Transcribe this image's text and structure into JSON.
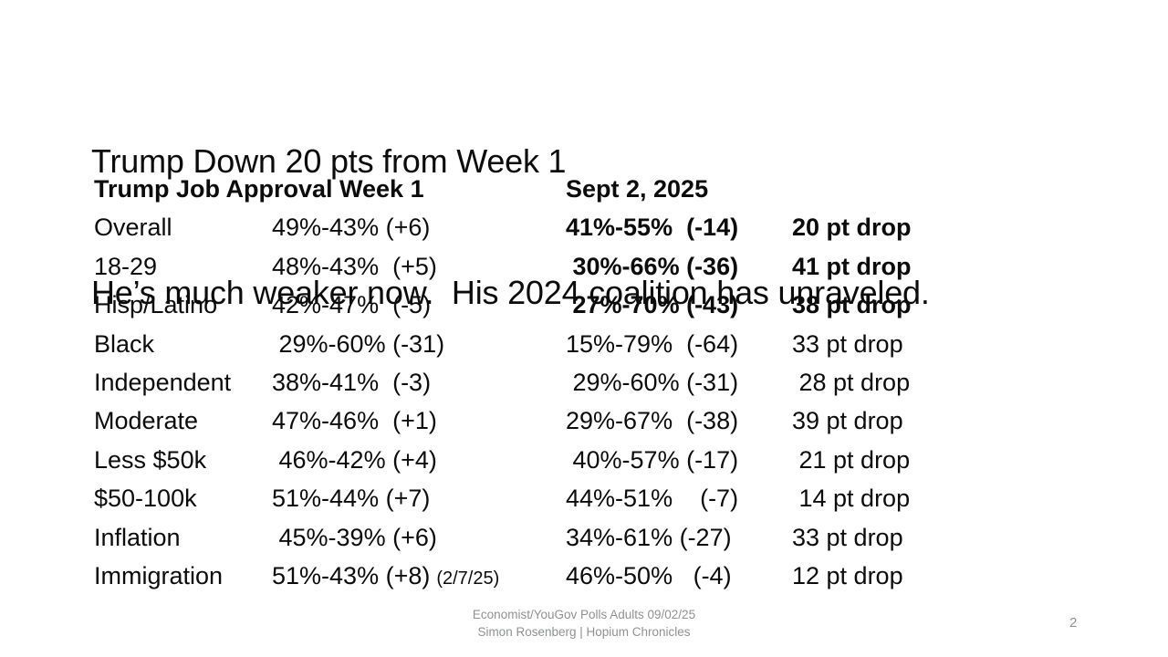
{
  "slide": {
    "title": {
      "line1": "Trump Down 20 pts from Week 1",
      "line2": "He’s much weaker now.  His 2024 coalition has unraveled."
    },
    "footer": {
      "line1": "Economist/YouGov Polls Adults 09/02/25",
      "line2": "Simon Rosenberg | Hopium Chronicles"
    },
    "page_number": "2"
  },
  "table": {
    "header_left": "Trump Job Approval Week 1",
    "header_right": "Sept 2, 2025",
    "rows": [
      {
        "label": "Overall",
        "week1": "49%-43% (+6)",
        "note": "",
        "sept": "41%-55%  (-14)",
        "drop": "20 pt drop",
        "bold": true
      },
      {
        "label": "18-29",
        "week1": "48%-43%  (+5)",
        "note": "",
        "sept": " 30%-66% (-36)",
        "drop": "41 pt drop",
        "bold": true
      },
      {
        "label": "Hisp/Latino",
        "week1": "42%-47%  (-5)",
        "note": "",
        "sept": " 27%-70% (-43)",
        "drop": "38 pt drop",
        "bold": true
      },
      {
        "label": "Black",
        "week1": " 29%-60% (-31)",
        "note": "",
        "sept": "15%-79%  (-64)",
        "drop": "33 pt drop",
        "bold": false
      },
      {
        "label": "Independent",
        "week1": "38%-41%  (-3)",
        "note": "",
        "sept": " 29%-60% (-31)",
        "drop": " 28 pt drop",
        "bold": false
      },
      {
        "label": "Moderate",
        "week1": "47%-46%  (+1)",
        "note": "",
        "sept": "29%-67%  (-38)",
        "drop": "39 pt drop",
        "bold": false
      },
      {
        "label": "Less $50k",
        "week1": " 46%-42% (+4)",
        "note": "",
        "sept": " 40%-57% (-17)",
        "drop": " 21 pt drop",
        "bold": false
      },
      {
        "label": "$50-100k",
        "week1": "51%-44% (+7)",
        "note": "",
        "sept": "44%-51%    (-7)",
        "drop": " 14 pt drop",
        "bold": false
      },
      {
        "label": "Inflation",
        "week1": " 45%-39% (+6)",
        "note": "",
        "sept": "34%-61% (-27)",
        "drop": "33 pt drop",
        "bold": false
      },
      {
        "label": "Immigration",
        "week1": "51%-43% (+8)",
        "note": "(2/7/25)",
        "sept": "46%-50%   (-4)",
        "drop": "12 pt drop",
        "bold": false
      }
    ]
  },
  "colors": {
    "background": "#ffffff",
    "text": "#0c0c0c",
    "muted": "#8f9193"
  }
}
